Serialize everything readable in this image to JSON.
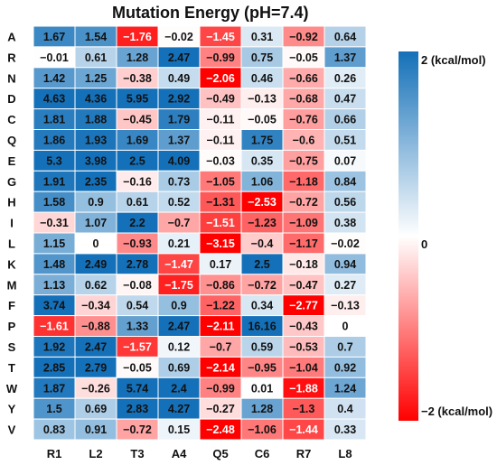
{
  "chart_data": {
    "type": "heatmap",
    "title": "Mutation Energy (pH=7.4)",
    "rows": [
      "A",
      "R",
      "N",
      "D",
      "C",
      "Q",
      "E",
      "G",
      "H",
      "I",
      "L",
      "K",
      "M",
      "F",
      "P",
      "S",
      "T",
      "W",
      "Y",
      "V"
    ],
    "columns": [
      "R1",
      "L2",
      "T3",
      "A4",
      "Q5",
      "C6",
      "R7",
      "L8"
    ],
    "values": [
      [
        1.67,
        1.54,
        -1.76,
        -0.02,
        -1.45,
        0.31,
        -0.92,
        0.64
      ],
      [
        -0.01,
        0.61,
        1.28,
        2.47,
        -0.99,
        0.75,
        -0.05,
        1.37
      ],
      [
        1.42,
        1.25,
        -0.38,
        0.49,
        -2.06,
        0.46,
        -0.66,
        0.26
      ],
      [
        4.63,
        4.36,
        5.95,
        2.92,
        -0.49,
        -0.13,
        -0.68,
        0.47
      ],
      [
        1.81,
        1.88,
        -0.45,
        1.79,
        -0.11,
        -0.05,
        -0.76,
        0.66
      ],
      [
        1.86,
        1.93,
        1.69,
        1.37,
        -0.11,
        1.75,
        -0.6,
        0.51
      ],
      [
        5.3,
        3.98,
        2.5,
        4.09,
        -0.03,
        0.35,
        -0.75,
        0.07
      ],
      [
        1.91,
        2.35,
        -0.16,
        0.73,
        -1.05,
        1.06,
        -1.18,
        0.84
      ],
      [
        1.58,
        0.9,
        0.61,
        0.52,
        -1.31,
        -2.53,
        -0.72,
        0.56
      ],
      [
        -0.31,
        1.07,
        2.2,
        -0.7,
        -1.51,
        -1.23,
        -1.09,
        0.38
      ],
      [
        1.15,
        0,
        -0.93,
        0.21,
        -3.15,
        -0.4,
        -1.17,
        -0.02
      ],
      [
        1.48,
        2.49,
        2.78,
        -1.47,
        0.17,
        2.5,
        -0.18,
        0.94
      ],
      [
        1.13,
        0.62,
        -0.08,
        -1.75,
        -0.86,
        -0.72,
        -0.47,
        0.27
      ],
      [
        3.74,
        -0.34,
        0.54,
        0.9,
        -1.22,
        0.34,
        -2.77,
        -0.13
      ],
      [
        -1.61,
        -0.88,
        1.33,
        2.47,
        -2.11,
        16.16,
        -0.43,
        0
      ],
      [
        1.92,
        2.47,
        -1.57,
        0.12,
        -0.7,
        0.59,
        -0.53,
        0.7
      ],
      [
        2.85,
        2.79,
        -0.05,
        0.69,
        -2.14,
        -0.95,
        -1.04,
        0.92
      ],
      [
        1.87,
        -0.26,
        5.74,
        2.4,
        -0.99,
        0.01,
        -1.88,
        1.24
      ],
      [
        1.5,
        0.69,
        2.83,
        4.27,
        -0.27,
        1.28,
        -1.3,
        0.4
      ],
      [
        0.83,
        0.91,
        -0.72,
        0.15,
        -2.48,
        -1.06,
        -1.44,
        0.33
      ]
    ],
    "color_scale": {
      "min": -2,
      "max": 2,
      "low_color": "#ff0000",
      "mid_color": "#ffffff",
      "high_color": "#1470b8"
    },
    "colorbar": {
      "top_label": "2 (kcal/mol)",
      "mid_label": "0",
      "bottom_label": "−2 (kcal/mol)"
    }
  }
}
